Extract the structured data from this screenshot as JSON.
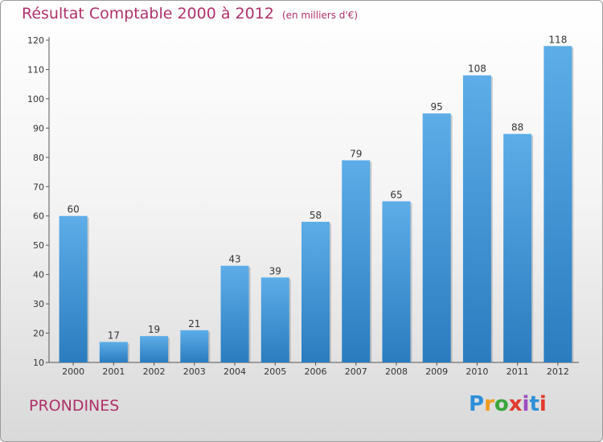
{
  "chart_data": {
    "type": "bar",
    "title": "Résultat Comptable 2000 à 2012",
    "units": "(en milliers d'€)",
    "categories": [
      "2000",
      "2001",
      "2002",
      "2003",
      "2004",
      "2005",
      "2006",
      "2007",
      "2008",
      "2009",
      "2010",
      "2011",
      "2012"
    ],
    "values": [
      60,
      17,
      19,
      21,
      43,
      39,
      58,
      79,
      65,
      95,
      108,
      88,
      118
    ],
    "ylim": [
      10,
      120
    ],
    "yticks": [
      10,
      20,
      30,
      40,
      50,
      60,
      70,
      80,
      90,
      100,
      110,
      120
    ],
    "grid": false,
    "xlabel": "",
    "ylabel": "",
    "bar_color_top": "#5dade8",
    "bar_color_bottom": "#2a7cbf"
  },
  "footer": {
    "commune": "PRONDINES",
    "logo_letters": [
      "P",
      "r",
      "o",
      "x",
      "i",
      "t",
      "i"
    ],
    "logo_colors": [
      "#2e8fd8",
      "#f09a1c",
      "#3aa63a",
      "#e23a2e",
      "#9b4cc2",
      "#2e8fd8",
      "#e23a2e"
    ]
  }
}
